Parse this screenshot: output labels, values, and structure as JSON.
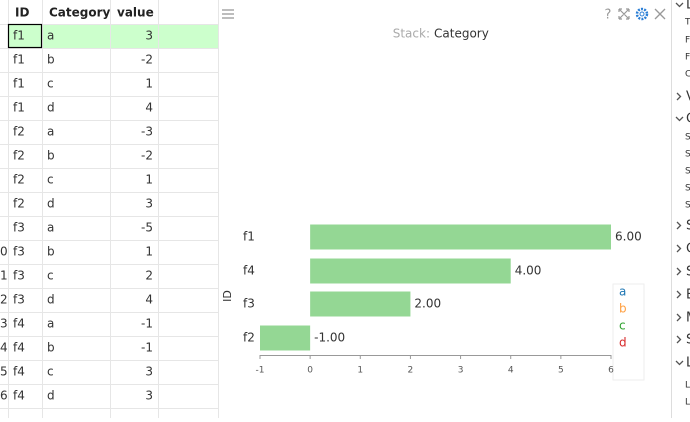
{
  "table": {
    "columns": [
      "ID",
      "Category",
      "value"
    ],
    "rows": [
      [
        "f1",
        "a",
        3
      ],
      [
        "f1",
        "b",
        -2
      ],
      [
        "f1",
        "c",
        1
      ],
      [
        "f1",
        "d",
        4
      ],
      [
        "f2",
        "a",
        -3
      ],
      [
        "f2",
        "b",
        -2
      ],
      [
        "f2",
        "c",
        1
      ],
      [
        "f2",
        "d",
        3
      ],
      [
        "f3",
        "a",
        -5
      ],
      [
        "f3",
        "b",
        1
      ],
      [
        "f3",
        "c",
        2
      ],
      [
        "f3",
        "d",
        4
      ],
      [
        "f4",
        "a",
        -1
      ],
      [
        "f4",
        "b",
        -1
      ],
      [
        "f4",
        "c",
        3
      ],
      [
        "f4",
        "d",
        3
      ]
    ],
    "row_labels": [
      null,
      null,
      null,
      null,
      null,
      null,
      null,
      null,
      null,
      "0",
      "1",
      "2",
      "3",
      "4",
      "5",
      "6"
    ]
  },
  "chart": {
    "type": "bar",
    "stack_label": "Stack:",
    "stack_value": "Category",
    "y_axis_label": "ID",
    "categories": [
      "f1",
      "f4",
      "f3",
      "f2"
    ],
    "values": [
      6,
      4,
      2,
      -1
    ],
    "value_labels": [
      "6.00",
      "4.00",
      "2.00",
      "-1.00"
    ],
    "color": "#94d794",
    "xlim": [
      -1,
      6
    ],
    "xticks": [
      -1,
      0,
      1,
      2,
      3,
      4,
      5,
      6
    ],
    "legend": [
      {
        "name": "a",
        "color": "#1f77b4"
      },
      {
        "name": "b",
        "color": "#ff9f40"
      },
      {
        "name": "c",
        "color": "#2ca02c"
      },
      {
        "name": "d",
        "color": "#d62728"
      }
    ]
  },
  "side_panel": {
    "items": [
      {
        "text": "D",
        "chevron": "down"
      },
      {
        "text": "T",
        "chevron": null
      },
      {
        "text": "F",
        "chevron": null
      },
      {
        "text": "F",
        "chevron": null
      },
      {
        "text": "C",
        "chevron": null
      },
      {
        "text": "V",
        "chevron": "right"
      },
      {
        "text": "C",
        "chevron": "down"
      },
      {
        "text": "S",
        "chevron": null
      },
      {
        "text": "S",
        "chevron": null
      },
      {
        "text": "S",
        "chevron": null
      },
      {
        "text": "S",
        "chevron": null
      },
      {
        "text": "S",
        "chevron": null
      },
      {
        "text": "S",
        "chevron": "right"
      },
      {
        "text": "C",
        "chevron": "right"
      },
      {
        "text": "S",
        "chevron": "right"
      },
      {
        "text": "B",
        "chevron": "right"
      },
      {
        "text": "M",
        "chevron": "right"
      },
      {
        "text": "S",
        "chevron": "right"
      },
      {
        "text": "L",
        "chevron": "down"
      },
      {
        "text": "L",
        "chevron": null
      },
      {
        "text": "L",
        "chevron": null
      }
    ]
  }
}
